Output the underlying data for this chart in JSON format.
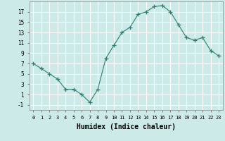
{
  "x": [
    0,
    1,
    2,
    3,
    4,
    5,
    6,
    7,
    8,
    9,
    10,
    11,
    12,
    13,
    14,
    15,
    16,
    17,
    18,
    19,
    20,
    21,
    22,
    23
  ],
  "y": [
    7,
    6,
    5,
    4,
    2,
    2,
    1,
    -0.5,
    2,
    8,
    10.5,
    13,
    14,
    16.5,
    17,
    18,
    18.2,
    17,
    14.5,
    12,
    11.5,
    12,
    9.5,
    8.5
  ],
  "line_color": "#2e7d6e",
  "marker": "+",
  "marker_size": 4,
  "background_color": "#cceae8",
  "grid_color": "#ffffff",
  "xlabel": "Humidex (Indice chaleur)",
  "xlabel_fontsize": 7,
  "ylabel_ticks": [
    -1,
    1,
    3,
    5,
    7,
    9,
    11,
    13,
    15,
    17
  ],
  "xtick_labels": [
    "0",
    "1",
    "2",
    "3",
    "4",
    "5",
    "6",
    "7",
    "8",
    "9",
    "10",
    "11",
    "12",
    "13",
    "14",
    "15",
    "16",
    "17",
    "18",
    "19",
    "20",
    "21",
    "22",
    "23"
  ],
  "ylim": [
    -2,
    19
  ],
  "xlim": [
    -0.5,
    23.5
  ]
}
